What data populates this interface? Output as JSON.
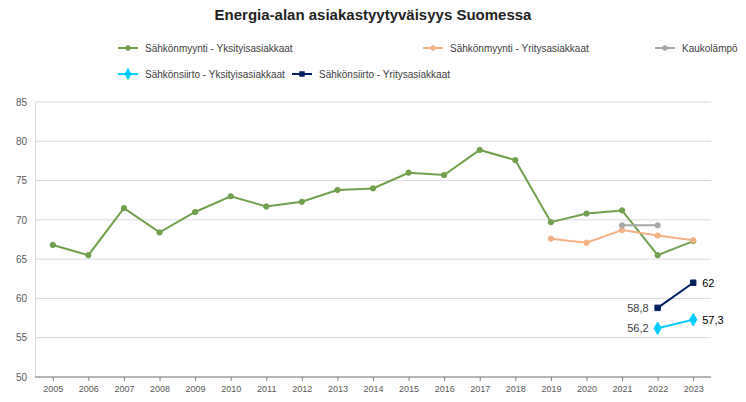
{
  "chart_data": {
    "type": "line",
    "title": "Energia-alan asiakastyytyväisyys Suomessa",
    "categories": [
      "2005",
      "2006",
      "2007",
      "2008",
      "2009",
      "2010",
      "2011",
      "2012",
      "2013",
      "2014",
      "2015",
      "2016",
      "2017",
      "2018",
      "2019",
      "2020",
      "2021",
      "2022",
      "2023"
    ],
    "ylim": [
      50,
      85
    ],
    "yticks": [
      50,
      55,
      60,
      65,
      70,
      75,
      80,
      85
    ],
    "grid": true,
    "legend": "top",
    "series": [
      {
        "name": "Sähkönmyynti - Yksityisasiakkaat",
        "color": "#70a04c",
        "marker": "circle",
        "values": [
          66.8,
          65.5,
          71.5,
          68.4,
          71.0,
          73.0,
          71.7,
          72.3,
          73.8,
          74.0,
          76.0,
          75.7,
          78.9,
          77.6,
          69.7,
          70.8,
          71.2,
          65.5,
          67.3
        ]
      },
      {
        "name": "Sähkönmyynti - Yritysasiakkaat",
        "color": "#f4b183",
        "marker": "circle",
        "values": [
          null,
          null,
          null,
          null,
          null,
          null,
          null,
          null,
          null,
          null,
          null,
          null,
          null,
          null,
          67.6,
          67.1,
          68.7,
          68.0,
          67.4
        ]
      },
      {
        "name": "Kaukolämpö",
        "color": "#a6a6a6",
        "marker": "circle",
        "values": [
          null,
          null,
          null,
          null,
          null,
          null,
          null,
          null,
          null,
          null,
          null,
          null,
          null,
          null,
          null,
          null,
          69.3,
          69.3,
          null
        ]
      },
      {
        "name": "Sähkönsiirto - Yksityisasiakkaat",
        "color": "#00ccff",
        "marker": "diamond",
        "data_labels": true,
        "values": [
          null,
          null,
          null,
          null,
          null,
          null,
          null,
          null,
          null,
          null,
          null,
          null,
          null,
          null,
          null,
          null,
          null,
          56.2,
          57.3
        ],
        "value_labels": [
          null,
          null,
          null,
          null,
          null,
          null,
          null,
          null,
          null,
          null,
          null,
          null,
          null,
          null,
          null,
          null,
          null,
          "56,2",
          "57,3"
        ]
      },
      {
        "name": "Sähkönsiirto - Yritysasiakkaat",
        "color": "#002060",
        "marker": "square",
        "data_labels": true,
        "values": [
          null,
          null,
          null,
          null,
          null,
          null,
          null,
          null,
          null,
          null,
          null,
          null,
          null,
          null,
          null,
          null,
          null,
          58.8,
          62
        ],
        "value_labels": [
          null,
          null,
          null,
          null,
          null,
          null,
          null,
          null,
          null,
          null,
          null,
          null,
          null,
          null,
          null,
          null,
          null,
          "58,8",
          "62"
        ]
      }
    ]
  }
}
